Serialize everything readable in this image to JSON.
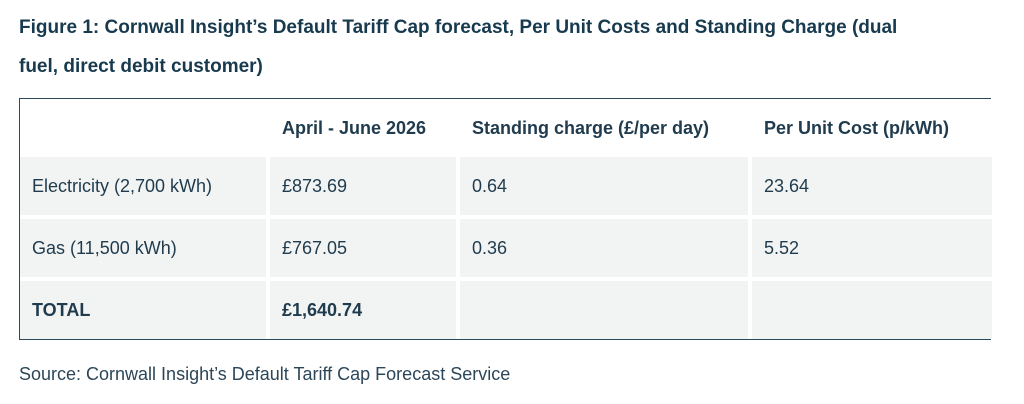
{
  "figure": {
    "title_line1": "Figure 1: Cornwall Insight’s Default Tariff Cap forecast, Per Unit Costs and Standing Charge (dual",
    "title_line2": "fuel, direct debit customer)"
  },
  "table": {
    "headers": [
      "",
      "April - June 2026",
      "Standing charge (£/per day)",
      "Per Unit Cost (p/kWh)"
    ],
    "rows": [
      [
        "Electricity (2,700 kWh)",
        "£873.69",
        "0.64",
        "23.64"
      ],
      [
        "Gas (11,500 kWh)",
        "£767.05",
        "0.36",
        "5.52"
      ],
      [
        "TOTAL",
        "£1,640.74",
        "",
        ""
      ]
    ]
  },
  "source": "Source: Cornwall Insight’s Default Tariff Cap Forecast Service"
}
